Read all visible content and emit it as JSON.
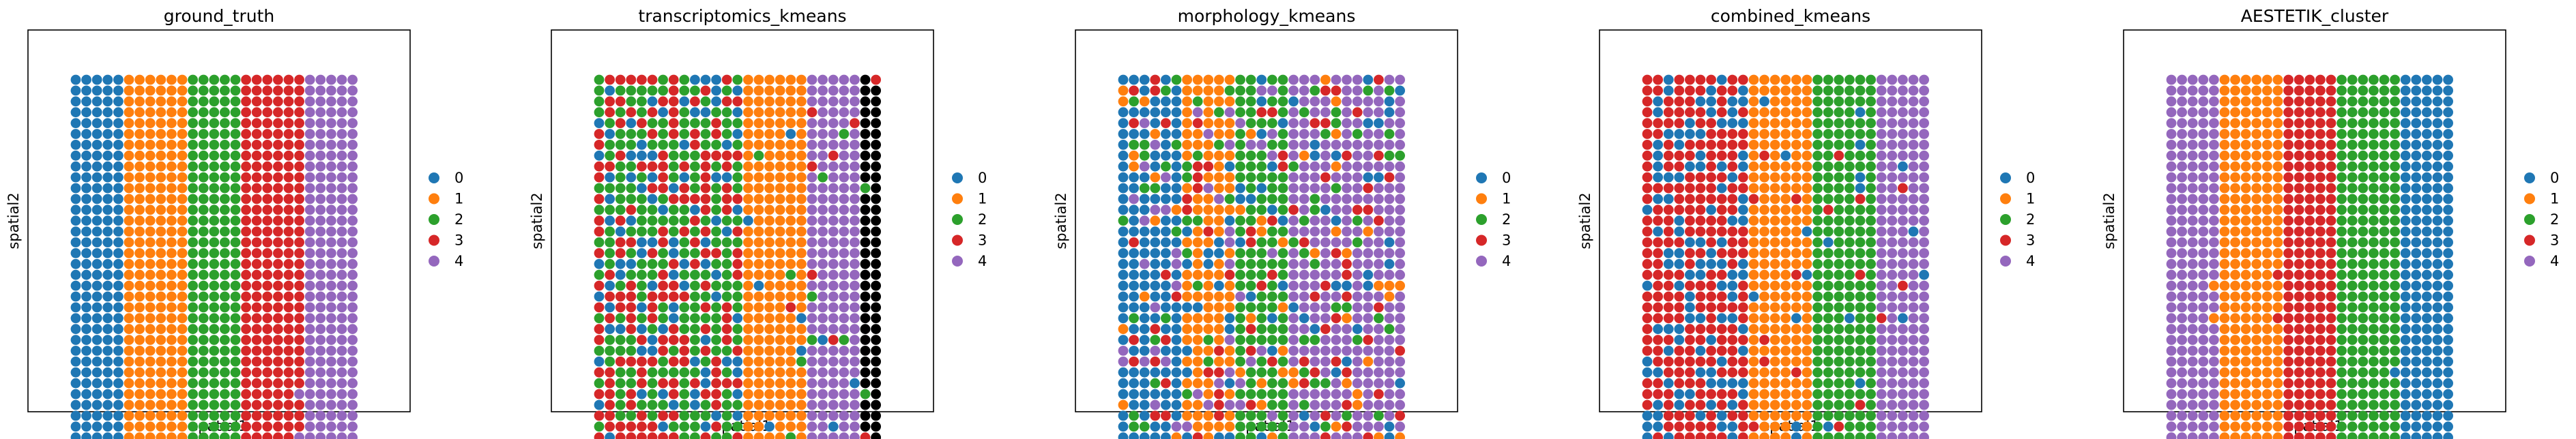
{
  "figure": {
    "palette": {
      "0": "#1f77b4",
      "1": "#ff7f0e",
      "2": "#2ca02c",
      "3": "#d62728",
      "4": "#9467bd"
    }
  },
  "chart_data": [
    {
      "type": "scatter",
      "title": "ground_truth",
      "xlabel": "spatial1",
      "ylabel": "spatial2",
      "grid": false,
      "legend_position": "right",
      "legend": [
        "0",
        "1",
        "2",
        "3",
        "4"
      ],
      "spot_grid": {
        "columns": 27,
        "rows": 34
      },
      "columns_per_cluster": [
        5,
        6,
        5,
        6,
        5
      ],
      "cluster_order_left_to_right": [
        0,
        1,
        2,
        3,
        4
      ],
      "texture": "clean"
    },
    {
      "type": "scatter",
      "title": "transcriptomics_kmeans",
      "xlabel": "spatial1",
      "ylabel": "spatial2",
      "grid": false,
      "legend_position": "right",
      "legend": [
        "0",
        "1",
        "2",
        "3",
        "4"
      ],
      "spot_grid": {
        "columns": 27,
        "rows": 34
      },
      "columns_per_cluster": [
        14,
        6,
        5
      ],
      "cluster_order_left_to_right": [
        2,
        1,
        4
      ],
      "texture": "mixed_left",
      "mix_clusters": [
        2,
        3,
        0
      ]
    },
    {
      "type": "scatter",
      "title": "morphology_kmeans",
      "xlabel": "spatial1",
      "ylabel": "spatial2",
      "grid": false,
      "legend_position": "right",
      "legend": [
        "0",
        "1",
        "2",
        "3",
        "4"
      ],
      "spot_grid": {
        "columns": 27,
        "rows": 34
      },
      "columns_per_cluster": [
        6,
        5,
        5,
        11
      ],
      "cluster_order_left_to_right": [
        0,
        1,
        2,
        4
      ],
      "texture": "noisy_all",
      "mix_clusters": [
        0,
        1,
        2,
        3,
        4
      ]
    },
    {
      "type": "scatter",
      "title": "combined_kmeans",
      "xlabel": "spatial1",
      "ylabel": "spatial2",
      "grid": false,
      "legend_position": "right",
      "legend": [
        "0",
        "1",
        "2",
        "3",
        "4"
      ],
      "spot_grid": {
        "columns": 27,
        "rows": 34
      },
      "columns_per_cluster": [
        10,
        6,
        6,
        5
      ],
      "cluster_order_left_to_right": [
        3,
        1,
        2,
        4
      ],
      "texture": "mixed_left",
      "mix_clusters": [
        3,
        0
      ]
    },
    {
      "type": "scatter",
      "title": "AESTETIK_cluster",
      "xlabel": "spatial1",
      "ylabel": "spatial2",
      "grid": false,
      "legend_position": "right",
      "legend": [
        "0",
        "1",
        "2",
        "3",
        "4"
      ],
      "spot_grid": {
        "columns": 27,
        "rows": 34
      },
      "columns_per_cluster": [
        5,
        6,
        5,
        6,
        5
      ],
      "cluster_order_left_to_right": [
        4,
        1,
        3,
        2,
        0
      ],
      "texture": "clean"
    }
  ]
}
